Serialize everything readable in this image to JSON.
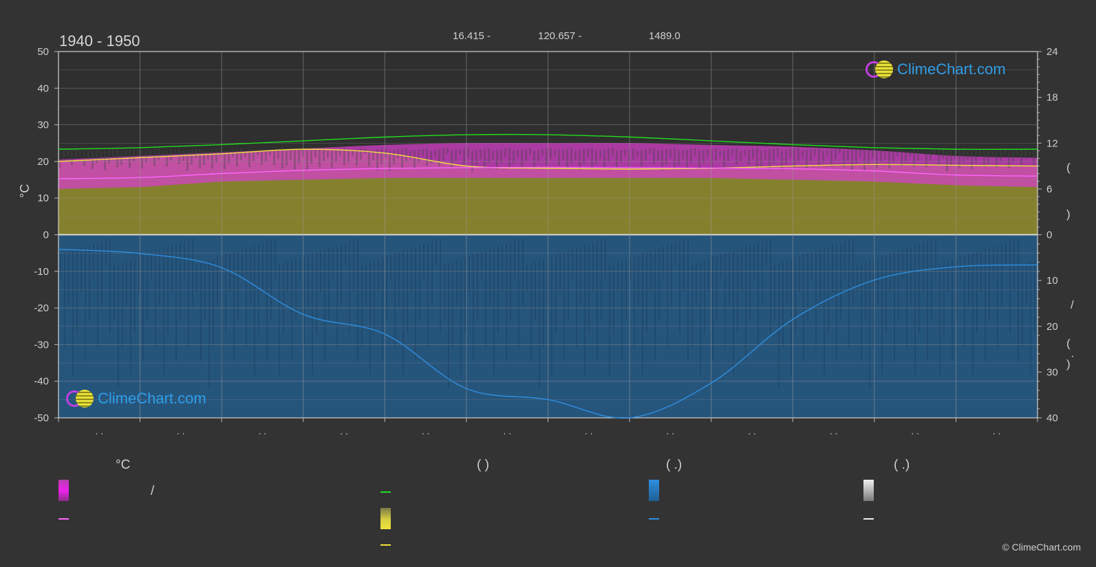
{
  "header": {
    "title": "1940 - 1950",
    "latitude": "16.415 -",
    "longitude": "120.657 -",
    "elevation": "1489.0"
  },
  "axes": {
    "left_label": "°C",
    "left_ticks": [
      "50",
      "40",
      "30",
      "20",
      "10",
      "0",
      "-10",
      "-20",
      "-30",
      "-40",
      "-50"
    ],
    "right_top_ticks": [
      "24",
      "18",
      "12",
      "6",
      "0"
    ],
    "right_bottom_ticks": [
      "10",
      "20",
      "30",
      "40"
    ],
    "right_top_label_glyphs": [
      "(",
      ")"
    ],
    "right_bottom_label_glyphs": [
      "/",
      "(",
      "·",
      ")"
    ],
    "month_tick_marks": ". ."
  },
  "legend": {
    "col1_head": "°C",
    "col2_head": "(          )",
    "col3_head": "(   .)",
    "col4_head": "(   .)",
    "slash": "/"
  },
  "logo": {
    "text": "ClimeChart.com"
  },
  "copyright": "© ClimeChart.com",
  "colors": {
    "background": "#333333",
    "daylight": "#22e01f",
    "sunshine": "#f0e23a",
    "temperature_mean": "#ff66ff",
    "temperature_range": "#d63fc9",
    "precipitation": "#2f8fe0",
    "sunshine_fill": "#8f8a2e",
    "precip_fill": "#245c8a"
  },
  "chart_data": {
    "type": "line",
    "x": [
      0,
      1,
      2,
      3,
      4,
      5,
      6,
      7,
      8,
      9,
      10,
      11,
      12
    ],
    "left_axis": {
      "label": "°C",
      "ylim": [
        -50,
        50
      ]
    },
    "right_axis_top": {
      "ylim": [
        0,
        24
      ]
    },
    "right_axis_bottom": {
      "ylim": [
        0,
        40
      ],
      "inverted": true
    },
    "series": [
      {
        "axis": "right_top",
        "values": [
          11.2,
          11.4,
          11.8,
          12.3,
          12.8,
          13.1,
          13.1,
          12.8,
          12.3,
          11.8,
          11.4,
          11.2,
          11.2
        ]
      },
      {
        "axis": "right_top",
        "values": [
          9.6,
          10.1,
          10.6,
          11.2,
          10.7,
          9.0,
          8.7,
          8.6,
          8.7,
          9.0,
          9.2,
          9.1,
          9.0
        ]
      },
      {
        "axis": "left",
        "values": [
          15.3,
          15.6,
          16.7,
          17.6,
          18.1,
          18.3,
          18.4,
          18.3,
          18.2,
          18.0,
          17.4,
          16.3,
          16.0
        ]
      },
      {
        "axis": "right_bottom",
        "values": [
          3.2,
          4.1,
          7.2,
          17.4,
          21.7,
          33.6,
          36.0,
          40.0,
          32.4,
          18.5,
          9.9,
          7.0,
          6.6
        ]
      }
    ],
    "bands": [
      {
        "axis": "left",
        "lower": [
          12.5,
          13.0,
          14.5,
          15.0,
          15.5,
          15.5,
          15.5,
          15.5,
          15.5,
          15.0,
          14.5,
          13.5,
          13.0
        ],
        "upper": [
          20.5,
          21.5,
          22.5,
          23.5,
          24.5,
          25.0,
          25.0,
          25.0,
          24.5,
          24.0,
          23.0,
          21.5,
          21.0
        ]
      },
      {
        "axis": "right_top",
        "lower": [
          0,
          0,
          0,
          0,
          0,
          0,
          0,
          0,
          0,
          0,
          0,
          0,
          0
        ],
        "upper": [
          9.6,
          10.1,
          10.6,
          11.2,
          10.7,
          9.0,
          8.7,
          8.6,
          8.7,
          9.0,
          9.2,
          9.1,
          9.0
        ]
      },
      {
        "axis": "right_bottom",
        "lower": [
          0,
          0,
          0,
          0,
          0,
          0,
          0,
          0,
          0,
          0,
          0,
          0,
          0
        ],
        "upper": [
          40,
          40,
          40,
          40,
          40,
          40,
          40,
          40,
          40,
          40,
          40,
          40,
          40
        ]
      }
    ]
  }
}
